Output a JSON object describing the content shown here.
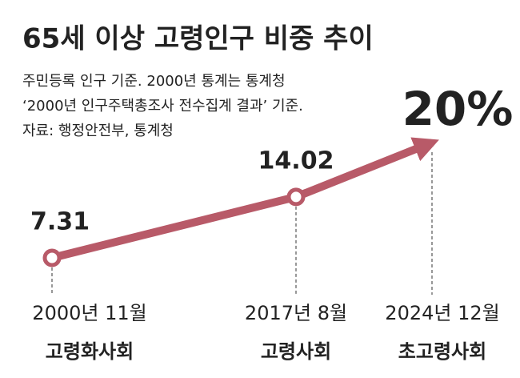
{
  "chart_data": {
    "type": "line",
    "title": "65세 이상 고령인구 비중 추이",
    "notes": [
      "주민등록 인구 기준. 2000년 통계는 통계청",
      "‘2000년 인구주택총조사 전수집계 결과’ 기준.",
      "자료: 행정안전부, 통계청"
    ],
    "categories": [
      "2000년 11월",
      "2017년 8월",
      "2024년 12월"
    ],
    "stages": [
      "고령화사회",
      "고령사회",
      "초고령사회"
    ],
    "values": [
      7.31,
      14.02,
      20
    ],
    "value_labels": [
      "7.31",
      "14.02",
      "20%"
    ],
    "color": "#b85a68",
    "label_color": "#b0475a"
  }
}
